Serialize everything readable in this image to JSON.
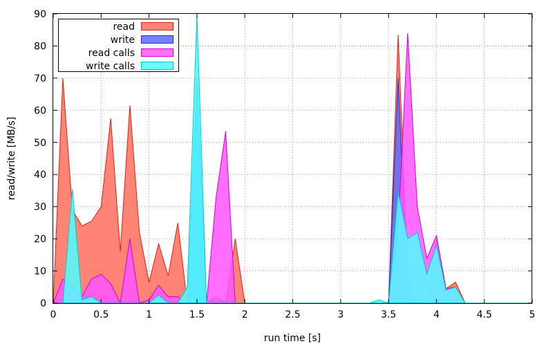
{
  "chart_data": {
    "type": "area",
    "xlabel": "run time [s]",
    "ylabel": "read/write [MB/s]",
    "xlim": [
      0,
      5
    ],
    "ylim": [
      0,
      90
    ],
    "x_ticks": [
      "0",
      "0.5",
      "1",
      "1.5",
      "2",
      "2.5",
      "3",
      "3.5",
      "4",
      "4.5",
      "5"
    ],
    "y_ticks": [
      "0",
      "10",
      "20",
      "30",
      "40",
      "50",
      "60",
      "70",
      "80",
      "90"
    ],
    "grid": true,
    "legend_position": "top-left",
    "series": [
      {
        "name": "read",
        "fill": "#ff6e5e",
        "stroke": "#e02010",
        "x": [
          0.0,
          0.1,
          0.2,
          0.3,
          0.4,
          0.5,
          0.6,
          0.7,
          0.8,
          0.9,
          1.0,
          1.1,
          1.2,
          1.3,
          1.4,
          1.5,
          1.6,
          1.7,
          1.8,
          1.9,
          2.0,
          3.5,
          3.6,
          3.7,
          3.8,
          3.9,
          4.0,
          4.1,
          4.2,
          4.3,
          5.0
        ],
        "y": [
          0,
          70,
          29,
          24,
          25.5,
          30,
          57.5,
          16,
          61.5,
          22,
          6.5,
          18.5,
          8.5,
          25,
          0,
          0,
          0,
          2,
          0,
          20,
          0,
          0,
          83.5,
          9.5,
          0,
          0,
          20,
          4.5,
          6.5,
          0,
          0
        ]
      },
      {
        "name": "write",
        "fill": "#5a6cff",
        "stroke": "#2030d0",
        "x": [
          0.0,
          1.3,
          1.4,
          1.5,
          1.6,
          1.7,
          3.5,
          3.6,
          3.7,
          3.8,
          3.9,
          4.0,
          4.1,
          5.0
        ],
        "y": [
          0,
          0,
          0,
          70,
          0,
          0,
          0,
          70,
          0,
          0,
          0,
          0,
          0,
          0
        ]
      },
      {
        "name": "read calls",
        "fill": "#ff55ff",
        "stroke": "#d000d0",
        "x": [
          0.0,
          0.1,
          0.2,
          0.3,
          0.4,
          0.5,
          0.6,
          0.7,
          0.8,
          0.9,
          1.0,
          1.1,
          1.2,
          1.3,
          1.4,
          1.5,
          1.6,
          1.7,
          1.8,
          1.9,
          2.0,
          3.5,
          3.6,
          3.7,
          3.8,
          3.9,
          4.0,
          4.1,
          4.2,
          4.3,
          5.0
        ],
        "y": [
          0,
          7.5,
          5,
          2,
          7.5,
          9,
          6,
          0,
          20,
          0,
          1,
          5.5,
          2,
          2,
          0,
          0,
          0,
          33,
          53.5,
          0,
          0,
          0,
          23,
          84,
          30,
          14,
          21,
          4.5,
          5,
          0,
          0
        ]
      },
      {
        "name": "write calls",
        "fill": "#4dffff",
        "stroke": "#00c8c8",
        "x": [
          0.0,
          0.1,
          0.2,
          0.3,
          0.4,
          0.5,
          0.6,
          0.7,
          0.8,
          0.9,
          1.0,
          1.1,
          1.2,
          1.3,
          1.4,
          1.5,
          1.6,
          2.0,
          3.3,
          3.4,
          3.5,
          3.6,
          3.7,
          3.8,
          3.9,
          4.0,
          4.1,
          4.2,
          4.3,
          5.0
        ],
        "y": [
          0,
          0,
          35.5,
          1,
          2,
          0,
          0,
          0,
          0,
          0,
          0,
          2.5,
          0,
          0,
          5,
          89.5,
          0,
          0,
          0,
          1,
          0,
          34.5,
          20,
          22,
          9,
          18,
          4,
          5,
          0,
          0
        ]
      }
    ]
  }
}
